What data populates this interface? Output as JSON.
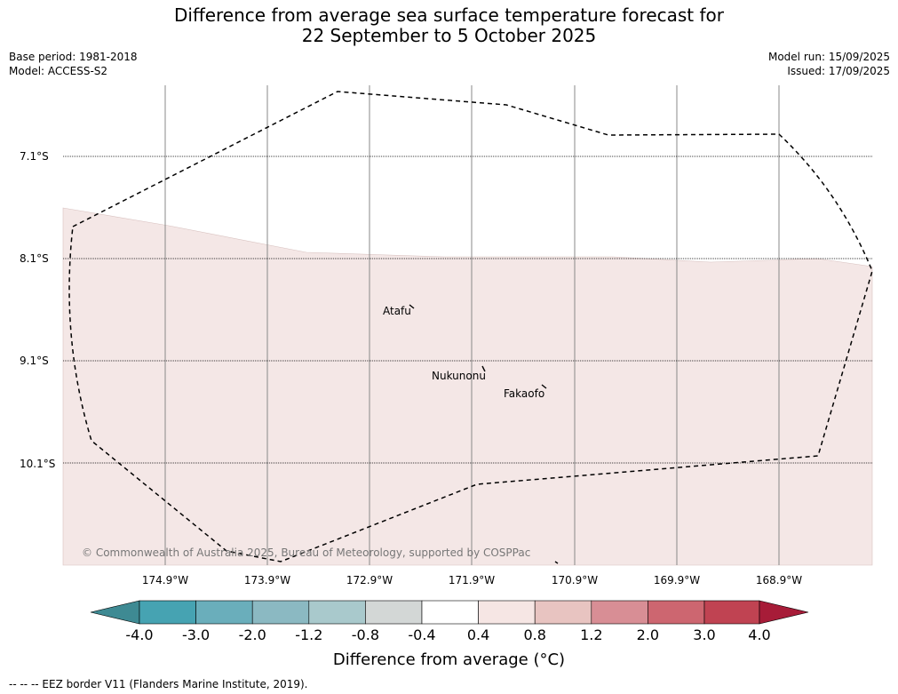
{
  "title": {
    "line1": "Difference from average sea surface temperature forecast for",
    "line2": "22 September to 5 October 2025"
  },
  "meta": {
    "base_period": "Base period: 1981-2018",
    "model": "Model: ACCESS-S2",
    "model_run": "Model run: 15/09/2025",
    "issued": "Issued: 17/09/2025"
  },
  "map": {
    "lat_labels": [
      "7.1°S",
      "8.1°S",
      "9.1°S",
      "10.1°S"
    ],
    "lon_labels": [
      "174.9°W",
      "173.9°W",
      "172.9°W",
      "171.9°W",
      "170.9°W",
      "169.9°W",
      "168.9°W"
    ],
    "places": [
      "Atafu",
      "Nukunonu",
      "Fakaofo"
    ],
    "copyright": "© Commonwealth of Australia 2025, Bureau of Meteorology, supported by COSPPac",
    "anomaly_fill_color": "#f4e7e6"
  },
  "colorbar": {
    "ticks": [
      "-4.0",
      "-3.0",
      "-2.0",
      "-1.2",
      "-0.8",
      "-0.4",
      "0.4",
      "0.8",
      "1.2",
      "2.0",
      "3.0",
      "4.0"
    ],
    "colors": [
      "#3e8a93",
      "#46a3b2",
      "#6aaebb",
      "#8bb9c2",
      "#a9c9cc",
      "#d3d7d6",
      "#ffffff",
      "#f6e6e4",
      "#e8c4c1",
      "#d88e95",
      "#cd6670",
      "#c04352",
      "#a71c38"
    ],
    "label": "Difference from average (°C)"
  },
  "footer": "--  --  -- EEZ border V11 (Flanders Marine Institute, 2019)."
}
